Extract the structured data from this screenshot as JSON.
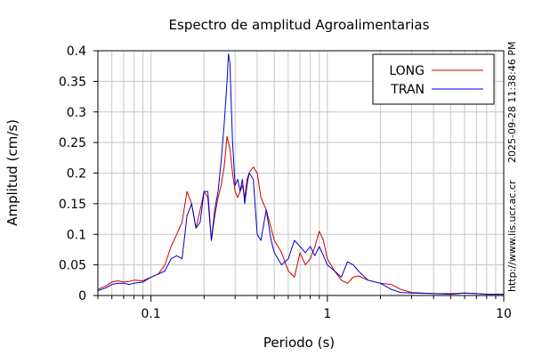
{
  "chart_data": {
    "type": "line",
    "title": "Espectro de amplitud Agroalimentarias",
    "xlabel": "Periodo (s)",
    "ylabel": "Amplitud (cm/s)",
    "x_scale": "log",
    "xlim": [
      0.05,
      10
    ],
    "ylim": [
      0,
      0.4
    ],
    "x_ticks": [
      0.1,
      1,
      10
    ],
    "x_tick_labels": [
      "0.1",
      "1",
      "10"
    ],
    "y_ticks": [
      0,
      0.05,
      0.1,
      0.15,
      0.2,
      0.25,
      0.3,
      0.35,
      0.4
    ],
    "y_tick_labels": [
      "0",
      "0.05",
      "0.1",
      "0.15",
      "0.2",
      "0.25",
      "0.3",
      "0.35",
      "0.4"
    ],
    "grid": true,
    "legend_position": "top-right",
    "side_labels": [
      "2025-09-28 11:38:46 PM",
      "http://www.lis.ucr.ac.cr"
    ],
    "series": [
      {
        "name": "LONG",
        "color": "#cc0000",
        "x": [
          0.05,
          0.055,
          0.06,
          0.065,
          0.07,
          0.075,
          0.08,
          0.09,
          0.1,
          0.11,
          0.12,
          0.13,
          0.14,
          0.15,
          0.16,
          0.17,
          0.18,
          0.19,
          0.2,
          0.21,
          0.22,
          0.23,
          0.24,
          0.25,
          0.26,
          0.27,
          0.28,
          0.29,
          0.3,
          0.31,
          0.32,
          0.33,
          0.34,
          0.35,
          0.36,
          0.38,
          0.4,
          0.42,
          0.45,
          0.48,
          0.5,
          0.55,
          0.6,
          0.65,
          0.7,
          0.75,
          0.8,
          0.85,
          0.9,
          0.95,
          1.0,
          1.1,
          1.2,
          1.3,
          1.4,
          1.5,
          1.7,
          2.0,
          2.3,
          2.6,
          3.0,
          4.0,
          5.0,
          6.0,
          7.0,
          8.0,
          9.0,
          10.0
        ],
        "y": [
          0.01,
          0.015,
          0.022,
          0.024,
          0.022,
          0.023,
          0.025,
          0.024,
          0.03,
          0.035,
          0.05,
          0.08,
          0.1,
          0.12,
          0.17,
          0.15,
          0.11,
          0.14,
          0.17,
          0.16,
          0.09,
          0.13,
          0.16,
          0.18,
          0.21,
          0.26,
          0.24,
          0.2,
          0.17,
          0.16,
          0.17,
          0.18,
          0.16,
          0.19,
          0.2,
          0.21,
          0.2,
          0.16,
          0.14,
          0.11,
          0.09,
          0.07,
          0.04,
          0.03,
          0.07,
          0.05,
          0.06,
          0.08,
          0.105,
          0.09,
          0.06,
          0.04,
          0.025,
          0.02,
          0.03,
          0.032,
          0.025,
          0.02,
          0.018,
          0.01,
          0.005,
          0.003,
          0.003,
          0.004,
          0.003,
          0.002,
          0.002,
          0.002
        ]
      },
      {
        "name": "TRAN",
        "color": "#0000cc",
        "x": [
          0.05,
          0.055,
          0.06,
          0.065,
          0.07,
          0.075,
          0.08,
          0.09,
          0.1,
          0.11,
          0.12,
          0.13,
          0.14,
          0.15,
          0.16,
          0.17,
          0.18,
          0.19,
          0.2,
          0.21,
          0.22,
          0.23,
          0.24,
          0.25,
          0.26,
          0.27,
          0.275,
          0.28,
          0.29,
          0.3,
          0.31,
          0.32,
          0.33,
          0.34,
          0.35,
          0.36,
          0.38,
          0.4,
          0.42,
          0.45,
          0.48,
          0.5,
          0.55,
          0.6,
          0.65,
          0.7,
          0.75,
          0.8,
          0.85,
          0.9,
          0.95,
          1.0,
          1.1,
          1.2,
          1.3,
          1.4,
          1.5,
          1.7,
          2.0,
          2.3,
          2.6,
          3.0,
          4.0,
          5.0,
          6.0,
          7.0,
          8.0,
          9.0,
          10.0
        ],
        "y": [
          0.008,
          0.012,
          0.018,
          0.02,
          0.02,
          0.018,
          0.02,
          0.022,
          0.03,
          0.035,
          0.04,
          0.06,
          0.065,
          0.06,
          0.13,
          0.15,
          0.11,
          0.12,
          0.17,
          0.17,
          0.09,
          0.14,
          0.17,
          0.22,
          0.28,
          0.35,
          0.395,
          0.38,
          0.25,
          0.18,
          0.19,
          0.17,
          0.19,
          0.15,
          0.18,
          0.2,
          0.19,
          0.1,
          0.09,
          0.14,
          0.09,
          0.07,
          0.05,
          0.06,
          0.09,
          0.08,
          0.07,
          0.08,
          0.065,
          0.08,
          0.065,
          0.05,
          0.04,
          0.03,
          0.055,
          0.05,
          0.04,
          0.025,
          0.02,
          0.01,
          0.005,
          0.004,
          0.003,
          0.002,
          0.004,
          0.003,
          0.002,
          0.002,
          0.002
        ]
      }
    ]
  }
}
